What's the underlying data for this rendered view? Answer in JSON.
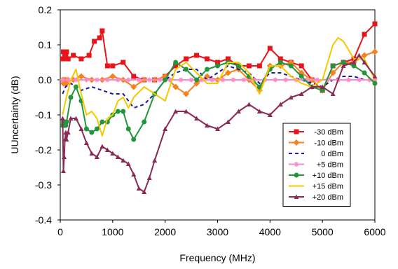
{
  "chart_data": {
    "type": "line",
    "xlabel": "Frequency (MHz)",
    "ylabel": "UUncertainty (dB)",
    "xlim": [
      0,
      6000
    ],
    "ylim": [
      -0.4,
      0.2
    ],
    "xticks": [
      "0",
      "1000",
      "2000",
      "3000",
      "4000",
      "5000",
      "6000"
    ],
    "yticks": [
      "0.2",
      "0.1",
      "0.0",
      "-0.1",
      "-0.2",
      "-0.3",
      "-0.4"
    ],
    "grid": false,
    "legend_position": "right",
    "series": [
      {
        "name": "-30 dBm",
        "color": "#e8141b",
        "dash": "solid",
        "marker": "square",
        "x": [
          45,
          60,
          75,
          90,
          105,
          120,
          150,
          250,
          400,
          550,
          650,
          750,
          800,
          900,
          1000,
          1200,
          1400,
          1600,
          1800,
          2000,
          2200,
          2400,
          2600,
          2800,
          3000,
          3200,
          3400,
          3600,
          3800,
          4000,
          4200,
          4400,
          4600,
          4800,
          5000,
          5200,
          5400,
          5600,
          5800,
          6000
        ],
        "y": [
          0.06,
          0.08,
          0.06,
          0.08,
          0.07,
          0.08,
          0.06,
          0.07,
          0.06,
          0.07,
          0.11,
          0.12,
          0.14,
          0.04,
          0.04,
          0.05,
          0.01,
          0.0,
          0.0,
          0.01,
          0.04,
          0.06,
          0.07,
          0.06,
          0.05,
          0.06,
          0.04,
          0.04,
          0.04,
          0.09,
          0.06,
          0.05,
          0.04,
          0.0,
          -0.03,
          0.04,
          0.05,
          0.06,
          0.13,
          0.16
        ]
      },
      {
        "name": "-10 dBm",
        "color": "#f58220",
        "dash": "solid",
        "marker": "diamond",
        "x": [
          45,
          60,
          75,
          90,
          105,
          120,
          150,
          250,
          400,
          600,
          800,
          1000,
          1200,
          1400,
          1600,
          1800,
          2000,
          2200,
          2400,
          2600,
          2800,
          3000,
          3200,
          3400,
          3600,
          3800,
          4000,
          4200,
          4400,
          4600,
          4800,
          5000,
          5200,
          5400,
          5600,
          5800,
          6000
        ],
        "y": [
          0.0,
          -0.01,
          0.0,
          -0.01,
          0.0,
          -0.01,
          0.0,
          0.0,
          0.01,
          0.0,
          0.0,
          0.01,
          0.0,
          -0.02,
          0.0,
          0.0,
          0.01,
          -0.02,
          -0.04,
          -0.01,
          0.01,
          0.0,
          0.02,
          0.03,
          0.0,
          -0.03,
          0.04,
          0.04,
          0.05,
          0.02,
          0.0,
          -0.03,
          0.02,
          0.05,
          0.05,
          0.07,
          0.08
        ]
      },
      {
        "name": "0 dBm",
        "color": "#1a1aa0",
        "dash": "5,4",
        "marker": "none",
        "x": [
          45,
          100,
          200,
          300,
          400,
          600,
          800,
          1000,
          1200,
          1400,
          1600,
          1800,
          2000,
          2200,
          2400,
          2600,
          2800,
          3000,
          3200,
          3400,
          3600,
          3800,
          4000,
          4200,
          4400,
          4600,
          4800,
          5000,
          5200,
          5400,
          5600,
          5800,
          6000
        ],
        "y": [
          -0.04,
          -0.02,
          -0.01,
          -0.02,
          -0.03,
          -0.02,
          -0.03,
          -0.04,
          -0.04,
          -0.08,
          -0.07,
          -0.04,
          0.0,
          0.02,
          0.03,
          0.03,
          0.0,
          0.02,
          0.04,
          0.03,
          0.02,
          -0.01,
          0.02,
          0.02,
          0.01,
          0.0,
          -0.01,
          -0.02,
          0.0,
          0.01,
          0.01,
          0.0,
          0.0
        ]
      },
      {
        "name": "+5 dBm",
        "color": "#ff88c8",
        "dash": "solid",
        "marker": "star",
        "x": [
          45,
          150,
          300,
          500,
          700,
          900,
          1100,
          1300,
          1500,
          1700,
          1900,
          2100,
          2300,
          2500,
          2700,
          2900,
          3100,
          3300,
          3500,
          3700,
          3900,
          4100,
          4300,
          4500,
          4700,
          4900,
          5100,
          5300,
          5500,
          5700,
          5900,
          6000
        ],
        "y": [
          0.0,
          0.0,
          0.0,
          0.0,
          0.0,
          0.0,
          0.0,
          0.0,
          0.0,
          0.0,
          0.0,
          0.0,
          0.0,
          0.0,
          0.0,
          0.0,
          0.0,
          0.0,
          0.0,
          0.0,
          0.0,
          0.0,
          0.0,
          0.0,
          0.0,
          0.0,
          0.0,
          0.0,
          0.0,
          0.0,
          0.0,
          0.0
        ]
      },
      {
        "name": "+10 dBm",
        "color": "#23963c",
        "dash": "solid",
        "marker": "circle",
        "x": [
          45,
          60,
          75,
          90,
          105,
          120,
          200,
          300,
          400,
          500,
          600,
          700,
          800,
          900,
          1000,
          1100,
          1200,
          1300,
          1400,
          1600,
          1800,
          2000,
          2200,
          2400,
          2600,
          2800,
          3000,
          3200,
          3400,
          3600,
          3800,
          4000,
          4200,
          4400,
          4600,
          4800,
          5000,
          5200,
          5400,
          5600,
          5800,
          6000
        ],
        "y": [
          -0.13,
          -0.12,
          -0.13,
          -0.12,
          -0.13,
          -0.12,
          -0.05,
          -0.02,
          -0.06,
          -0.14,
          -0.15,
          -0.14,
          -0.12,
          -0.12,
          -0.1,
          -0.09,
          -0.09,
          -0.14,
          -0.17,
          -0.12,
          -0.04,
          0.0,
          0.05,
          0.03,
          0.0,
          0.03,
          0.04,
          0.05,
          0.04,
          0.01,
          -0.02,
          0.03,
          0.05,
          0.04,
          0.01,
          -0.02,
          -0.03,
          0.04,
          0.05,
          0.04,
          0.02,
          -0.01
        ]
      },
      {
        "name": "+15 dBm",
        "color": "#f5c800",
        "dash": "solid",
        "marker": "none",
        "x": [
          45,
          100,
          200,
          300,
          400,
          500,
          600,
          700,
          800,
          900,
          1000,
          1100,
          1200,
          1300,
          1400,
          1600,
          1800,
          2000,
          2200,
          2400,
          2600,
          2800,
          3000,
          3200,
          3400,
          3600,
          3800,
          4000,
          4200,
          4400,
          4600,
          4800,
          5000,
          5200,
          5300,
          5400,
          5600,
          5800,
          6000
        ],
        "y": [
          -0.1,
          -0.06,
          0.0,
          0.03,
          -0.04,
          -0.1,
          -0.09,
          -0.11,
          -0.16,
          -0.11,
          -0.1,
          -0.06,
          -0.05,
          -0.08,
          -0.05,
          -0.02,
          -0.04,
          -0.06,
          0.03,
          0.05,
          0.02,
          -0.01,
          -0.01,
          0.05,
          0.05,
          0.02,
          -0.04,
          0.04,
          0.04,
          0.01,
          -0.01,
          -0.02,
          0.0,
          0.1,
          0.12,
          0.11,
          0.06,
          0.06,
          0.0
        ]
      },
      {
        "name": "+20 dBm",
        "color": "#8b2a55",
        "dash": "solid",
        "marker": "triangle",
        "x": [
          45,
          60,
          75,
          90,
          105,
          120,
          150,
          200,
          300,
          400,
          500,
          600,
          700,
          800,
          900,
          1000,
          1100,
          1200,
          1300,
          1400,
          1500,
          1600,
          1700,
          1800,
          2000,
          2200,
          2400,
          2600,
          2800,
          3000,
          3200,
          3400,
          3600,
          3800,
          4000,
          4200,
          4400,
          4600,
          4800,
          5000,
          5200,
          5400,
          5600,
          5700,
          5800,
          6000
        ],
        "y": [
          -0.11,
          -0.26,
          -0.22,
          -0.17,
          -0.15,
          -0.17,
          -0.15,
          -0.11,
          -0.11,
          -0.14,
          -0.18,
          -0.21,
          -0.22,
          -0.19,
          -0.2,
          -0.21,
          -0.22,
          -0.23,
          -0.24,
          -0.27,
          -0.31,
          -0.32,
          -0.28,
          -0.23,
          -0.14,
          -0.09,
          -0.09,
          -0.11,
          -0.13,
          -0.14,
          -0.12,
          -0.09,
          -0.07,
          -0.09,
          -0.1,
          -0.07,
          -0.05,
          -0.04,
          -0.02,
          -0.02,
          -0.04,
          0.04,
          0.05,
          0.07,
          0.05,
          0.01
        ]
      }
    ]
  }
}
